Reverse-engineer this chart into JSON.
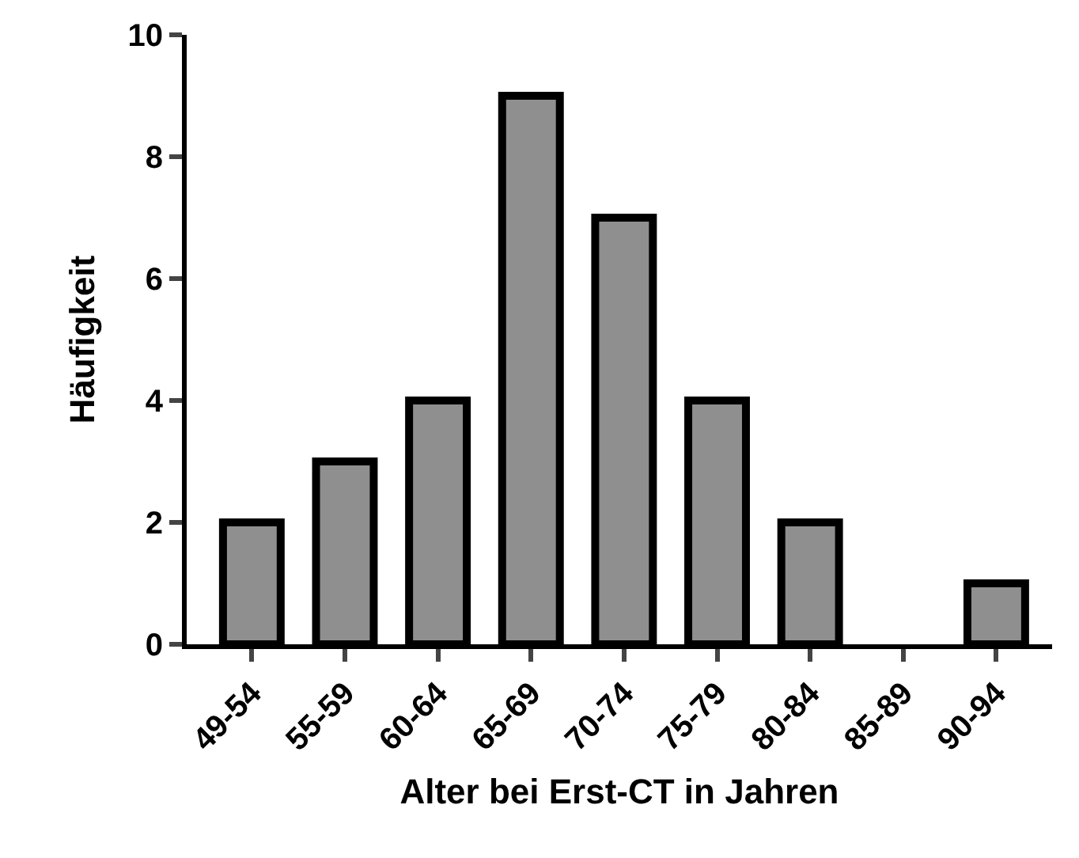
{
  "chart_data": {
    "type": "bar",
    "xlabel": "Alter bei Erst-CT in Jahren",
    "ylabel": "Häufigkeit",
    "categories": [
      "49-54",
      "55-59",
      "60-64",
      "65-69",
      "70-74",
      "75-79",
      "80-84",
      "85-89",
      "90-94"
    ],
    "values": [
      2,
      3,
      4,
      9,
      7,
      4,
      2,
      0,
      1
    ],
    "color": "#8f8f8f",
    "ylim": [
      0,
      10
    ],
    "yticks": [
      0,
      2,
      4,
      6,
      8,
      10
    ]
  }
}
